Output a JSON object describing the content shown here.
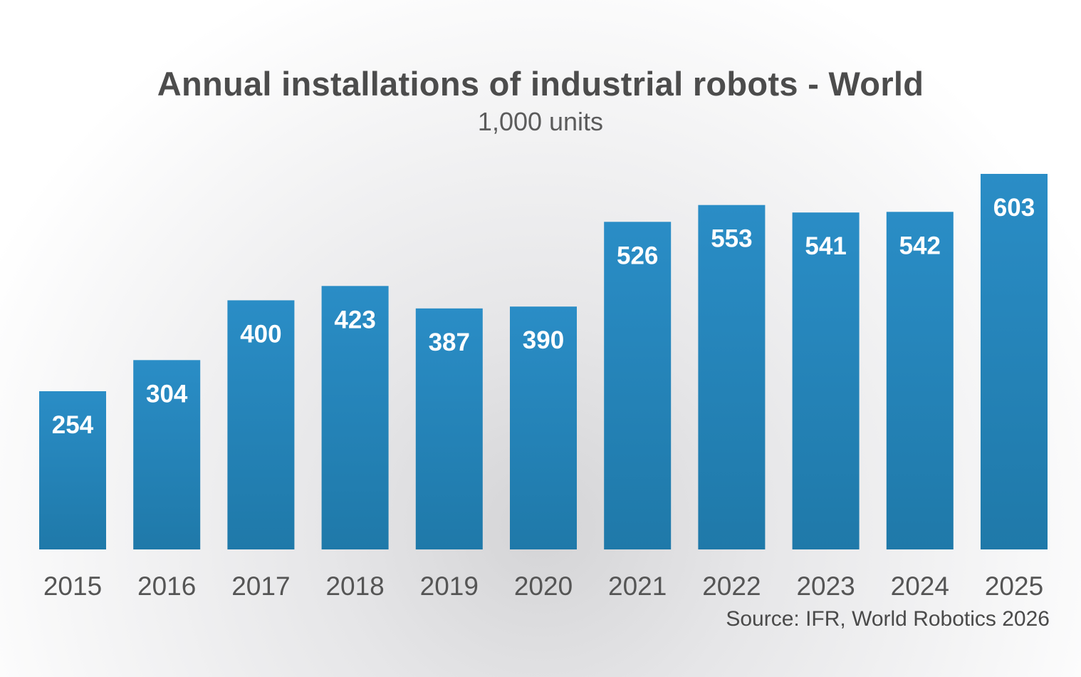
{
  "chart_data": {
    "type": "bar",
    "title": "Annual installations of industrial robots - World",
    "subtitle": "1,000 units",
    "categories": [
      "2015",
      "2016",
      "2017",
      "2018",
      "2019",
      "2020",
      "2021",
      "2022",
      "2023",
      "2024",
      "2025"
    ],
    "values": [
      254,
      304,
      400,
      423,
      387,
      390,
      526,
      553,
      541,
      542,
      603
    ],
    "data_labels": [
      "254",
      "304",
      "400",
      "423",
      "387",
      "390",
      "526",
      "553",
      "541",
      "542",
      "603"
    ],
    "source": "Source: IFR, World Robotics 2026",
    "bar_color": "#2a8cc4",
    "grid": false,
    "legend": "none",
    "ylim": [
      0,
      603
    ]
  }
}
